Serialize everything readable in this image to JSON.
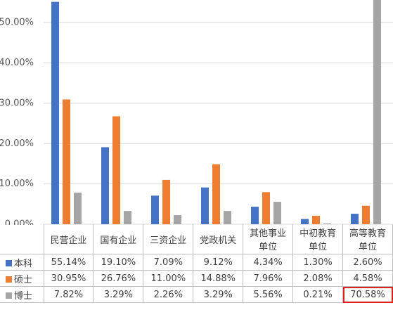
{
  "chart_data": {
    "type": "bar",
    "categories": [
      "民营企业",
      "国有企业",
      "三资企业",
      "党政机关",
      "其他事业\n单位",
      "中初教育\n单位",
      "高等教育\n单位"
    ],
    "series": [
      {
        "name": "本科",
        "color": "#4472c4",
        "values": [
          55.14,
          19.1,
          7.09,
          9.12,
          4.34,
          1.3,
          2.6
        ],
        "value_labels": [
          "55.14%",
          "19.10%",
          "7.09%",
          "9.12%",
          "4.34%",
          "1.30%",
          "2.60%"
        ]
      },
      {
        "name": "硕士",
        "color": "#ed7d31",
        "values": [
          30.95,
          26.76,
          11.0,
          14.88,
          7.96,
          2.08,
          4.58
        ],
        "value_labels": [
          "30.95%",
          "26.76%",
          "11.00%",
          "14.88%",
          "7.96%",
          "2.08%",
          "4.58%"
        ]
      },
      {
        "name": "博士",
        "color": "#a5a5a5",
        "values": [
          7.82,
          3.29,
          2.26,
          3.29,
          5.56,
          0.21,
          70.58
        ],
        "value_labels": [
          "7.82%",
          "3.29%",
          "2.26%",
          "3.29%",
          "5.56%",
          "0.21%",
          "70.58%"
        ]
      }
    ],
    "ylim": [
      0,
      55.6
    ],
    "yticks": [
      {
        "value": 0,
        "label": "0.00%"
      },
      {
        "value": 10,
        "label": "10.00%"
      },
      {
        "value": 20,
        "label": "20.00%"
      },
      {
        "value": 30,
        "label": "30.00%"
      },
      {
        "value": 40,
        "label": "40.00%"
      },
      {
        "value": 50,
        "label": "50.00%"
      }
    ],
    "grid": true
  }
}
